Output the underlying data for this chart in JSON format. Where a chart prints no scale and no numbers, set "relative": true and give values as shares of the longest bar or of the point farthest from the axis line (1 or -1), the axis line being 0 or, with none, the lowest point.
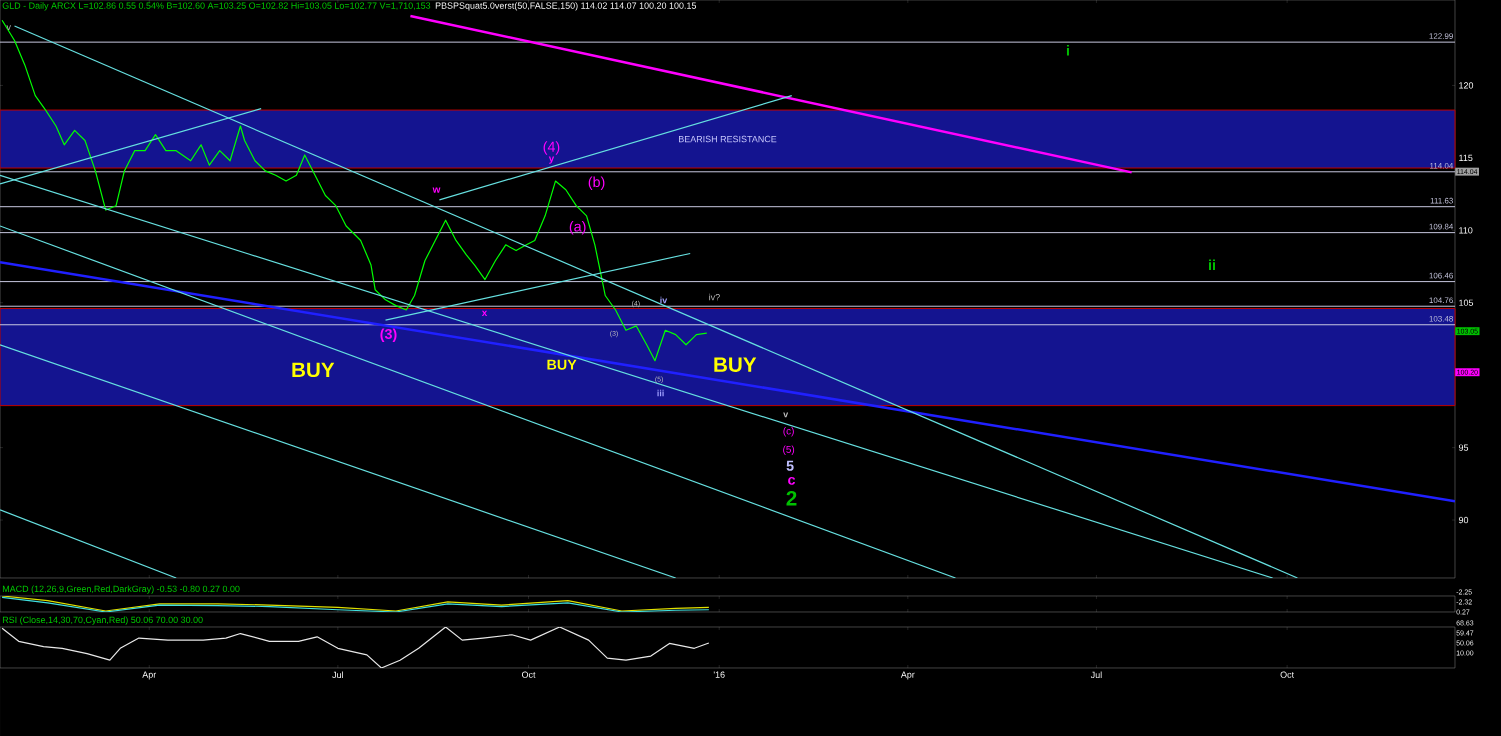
{
  "chart_data": [
    {
      "type": "line",
      "title": "GLD - Daily ARCX L=102.86 0.55 0.54% B=102.60 A=103.25 O=102.82 Hi=103.05 Lo=102.77 V=1,710,153",
      "subtitle": "PBSPSquat5.0verst(50,FALSE,150) 114.02 114.07 100.20 100.15",
      "x": [
        "2015-01-20",
        "2015-01-26",
        "2015-01-31",
        "2015-02-05",
        "2015-02-10",
        "2015-02-15",
        "2015-02-19",
        "2015-02-24",
        "2015-03-01",
        "2015-03-06",
        "2015-03-11",
        "2015-03-16",
        "2015-03-20",
        "2015-03-25",
        "2015-03-30",
        "2015-04-04",
        "2015-04-09",
        "2015-04-14",
        "2015-04-21",
        "2015-04-26",
        "2015-04-30",
        "2015-05-05",
        "2015-05-10",
        "2015-05-15",
        "2015-05-17",
        "2015-05-22",
        "2015-05-27",
        "2015-06-01",
        "2015-06-06",
        "2015-06-11",
        "2015-06-15",
        "2015-06-20",
        "2015-06-25",
        "2015-06-30",
        "2015-07-05",
        "2015-07-12",
        "2015-07-17",
        "2015-07-19",
        "2015-07-24",
        "2015-07-29",
        "2015-08-03",
        "2015-08-07",
        "2015-08-12",
        "2015-08-17",
        "2015-08-22",
        "2015-08-27",
        "2015-09-01",
        "2015-09-05",
        "2015-09-10",
        "2015-09-15",
        "2015-09-20",
        "2015-09-25",
        "2015-09-30",
        "2015-10-04",
        "2015-10-09",
        "2015-10-14",
        "2015-10-19",
        "2015-10-24",
        "2015-10-29",
        "2015-11-02",
        "2015-11-05",
        "2015-11-07",
        "2015-11-12",
        "2015-11-17",
        "2015-11-22",
        "2015-11-27",
        "2015-12-01",
        "2015-12-06",
        "2015-12-11",
        "2015-12-16",
        "2015-12-21",
        "2015-12-26"
      ],
      "xlim": [
        "2015-01-19",
        "2016-12-21"
      ],
      "xticks": [
        {
          "value": "2015-04-01",
          "label": null
        },
        {
          "value": "2015-07-01",
          "label": null
        },
        {
          "value": "2015-10-01",
          "label": null
        },
        {
          "value": "2016-01-01",
          "label": null
        },
        {
          "value": "2016-04-01",
          "label": null
        },
        {
          "value": "2016-07-01",
          "label": null
        },
        {
          "value": "2016-10-01",
          "label": null
        }
      ],
      "ylim": [
        86,
        125.9
      ],
      "yticks": [
        90,
        95,
        105,
        110,
        115,
        120
      ],
      "tick_labels": "y",
      "series": [
        {
          "color": "#00ff00",
          "values": [
            124.5,
            123.1,
            121.4,
            119.3,
            118.3,
            117.2,
            115.9,
            116.9,
            116.2,
            114.1,
            111.4,
            111.7,
            114.1,
            115.5,
            115.5,
            116.6,
            115.5,
            115.5,
            114.8,
            115.9,
            114.5,
            115.5,
            114.8,
            117.2,
            116.2,
            114.8,
            114.1,
            113.8,
            113.4,
            113.8,
            115.2,
            113.8,
            112.4,
            111.7,
            110.3,
            109.3,
            107.6,
            105.9,
            105.2,
            104.8,
            104.5,
            105.5,
            107.9,
            109.3,
            110.7,
            109.3,
            108.3,
            107.6,
            106.6,
            107.9,
            109.0,
            108.6,
            109.0,
            109.3,
            111.0,
            113.4,
            112.8,
            111.7,
            111.0,
            109.0,
            106.9,
            105.5,
            104.5,
            103.1,
            103.4,
            102.1,
            101.0,
            103.1,
            102.8,
            102.1,
            102.8,
            102.9
          ]
        },
        {
          "type": "line",
          "color": "#ff00ff",
          "x": [
            "2015-08-05",
            "2016-07-18"
          ],
          "values": [
            124.8,
            114.0
          ]
        },
        {
          "type": "line",
          "color": "#2020ff",
          "x": [
            "2015-01-19",
            "2016-12-21"
          ],
          "values": [
            107.8,
            91.3
          ]
        },
        {
          "type": "line",
          "color": "#66e0e0",
          "x": [
            "2015-01-19",
            "2016-09-24"
          ],
          "values": [
            113.8,
            86.0
          ]
        },
        {
          "type": "line",
          "color": "#66e0e0",
          "x": [
            "2015-01-26",
            "2016-10-06"
          ],
          "values": [
            124.1,
            86.0
          ]
        },
        {
          "type": "line",
          "color": "#66e0e0",
          "x": [
            "2015-01-19",
            "2016-04-24"
          ],
          "values": [
            110.3,
            86.0
          ]
        },
        {
          "type": "line",
          "color": "#66e0e0",
          "x": [
            "2015-01-19",
            "2015-12-11"
          ],
          "values": [
            102.1,
            86.0
          ]
        },
        {
          "type": "line",
          "color": "#66e0e0",
          "x": [
            "2015-01-19",
            "2015-04-14"
          ],
          "values": [
            90.7,
            86.0
          ]
        },
        {
          "type": "line",
          "color": "#66e0e0",
          "x": [
            "2015-01-19",
            "2015-05-25"
          ],
          "values": [
            113.2,
            118.4
          ]
        },
        {
          "type": "line",
          "color": "#66e0e0",
          "x": [
            "2015-08-19",
            "2016-02-05"
          ],
          "values": [
            112.1,
            119.3
          ]
        },
        {
          "type": "line",
          "color": "#66e0e0",
          "x": [
            "2015-07-24",
            "2015-12-18"
          ],
          "values": [
            103.8,
            108.4
          ]
        }
      ],
      "ref_lines": [
        {
          "axis": "y",
          "value": 122.99,
          "label": "122.99",
          "color": "#c8c8e0"
        },
        {
          "axis": "y",
          "value": 114.04,
          "label": "114.04",
          "color": "#c8c8e0"
        },
        {
          "axis": "y",
          "value": 111.63,
          "label": "111.63",
          "color": "#c8c8e0"
        },
        {
          "axis": "y",
          "value": 109.84,
          "label": "109.84",
          "color": "#c8c8e0"
        },
        {
          "axis": "y",
          "value": 106.46,
          "label": "106.46",
          "color": "#c8c8e0"
        },
        {
          "axis": "y",
          "value": 104.76,
          "label": "104.76",
          "color": "#c8c8e0"
        },
        {
          "axis": "y",
          "value": 103.48,
          "label": "103.48",
          "color": "#c8c8e0"
        }
      ],
      "bands": [
        {
          "axis": "y",
          "from": 114.3,
          "to": 118.3,
          "label": "BEARISH RESISTANCE",
          "color": "#141490"
        },
        {
          "axis": "y",
          "from": 97.9,
          "to": 104.6,
          "color": "#141490"
        }
      ],
      "annotations": [
        "v",
        "BUY",
        "BUY",
        "BUY",
        "(3)",
        "w",
        "x",
        "(4)",
        "y",
        "(b)",
        "(a)",
        "(4)",
        "(3)",
        "(5)",
        "iii",
        "iv",
        "iv?",
        "v",
        "(c)",
        "(5)",
        "5",
        "c",
        "2",
        "i",
        "ii",
        "114.04",
        "103.05",
        "100.20"
      ]
    },
    {
      "type": "line",
      "relative": true,
      "title": "MACD (12,26,9,Green,Red,DarkGray) -0.53 -0.80 0.27 0.00",
      "tick_labels": false,
      "xlim": [
        "2015-01-19",
        "2016-12-21"
      ],
      "xticks": [
        {
          "value": "2015-04-01",
          "label": null
        },
        {
          "value": "2015-07-01",
          "label": null
        },
        {
          "value": "2015-10-01",
          "label": null
        },
        {
          "value": "2016-01-01",
          "label": null
        },
        {
          "value": "2016-04-01",
          "label": null
        },
        {
          "value": "2016-07-01",
          "label": null
        },
        {
          "value": "2016-10-01",
          "label": null
        }
      ],
      "x": [
        "2015-01-20",
        "2015-02-11",
        "2015-03-11",
        "2015-04-06",
        "2015-05-04",
        "2015-05-29",
        "2015-07-01",
        "2015-07-29",
        "2015-08-23",
        "2015-09-18",
        "2015-10-20",
        "2015-11-15",
        "2015-12-11",
        "2015-12-27"
      ],
      "series": [
        {
          "color": "#e0e000",
          "values": [
            1.0,
            0.71,
            0.06,
            0.51,
            0.51,
            0.43,
            0.29,
            0.06,
            0.63,
            0.43,
            0.71,
            0.06,
            0.23,
            0.29
          ]
        },
        {
          "color": "#40e0e0",
          "values": [
            0.91,
            0.57,
            0,
            0.43,
            0.4,
            0.34,
            0.14,
            0,
            0.51,
            0.34,
            0.57,
            0,
            0.11,
            0.14
          ]
        }
      ],
      "annotations": [
        "-2.25",
        "-2.32",
        "0.27"
      ]
    },
    {
      "type": "line",
      "relative": true,
      "title": "RSI (Close,14,30,70,Cyan,Red) 50.06 70.00 30.00",
      "tick_labels": "x",
      "xlim": [
        "2015-01-19",
        "2016-12-21"
      ],
      "xticks": [
        {
          "value": "2015-04-01",
          "label": "Apr"
        },
        {
          "value": "2015-07-01",
          "label": "Jul"
        },
        {
          "value": "2015-10-01",
          "label": "Oct"
        },
        {
          "value": "2016-01-01",
          "label": "'16"
        },
        {
          "value": "2016-04-01",
          "label": "Apr"
        },
        {
          "value": "2016-07-01",
          "label": "Jul"
        },
        {
          "value": "2016-10-01",
          "label": "Oct"
        }
      ],
      "x": [
        "2015-01-20",
        "2015-01-28",
        "2015-02-09",
        "2015-02-18",
        "2015-03-02",
        "2015-03-13",
        "2015-03-18",
        "2015-03-27",
        "2015-04-10",
        "2015-04-27",
        "2015-05-08",
        "2015-05-15",
        "2015-05-29",
        "2015-06-12",
        "2015-06-21",
        "2015-07-01",
        "2015-07-15",
        "2015-07-22",
        "2015-07-31",
        "2015-08-09",
        "2015-08-22",
        "2015-08-30",
        "2015-09-09",
        "2015-09-23",
        "2015-10-02",
        "2015-10-16",
        "2015-10-30",
        "2015-11-08",
        "2015-11-17",
        "2015-11-29",
        "2015-12-08",
        "2015-12-20",
        "2015-12-27"
      ],
      "series": [
        {
          "color": "#e8e8e8",
          "values": [
            0.97,
            0.65,
            0.52,
            0.48,
            0.35,
            0.19,
            0.48,
            0.73,
            0.68,
            0.68,
            0.73,
            0.84,
            0.65,
            0.65,
            0.76,
            0.48,
            0.32,
            0,
            0.19,
            0.48,
            1.0,
            0.68,
            0.73,
            0.81,
            0.68,
            1.0,
            0.68,
            0.24,
            0.19,
            0.29,
            0.6,
            0.48,
            0.61
          ]
        }
      ],
      "annotations": [
        "68.63",
        "59.47",
        "50.06",
        "10.00"
      ]
    }
  ]
}
